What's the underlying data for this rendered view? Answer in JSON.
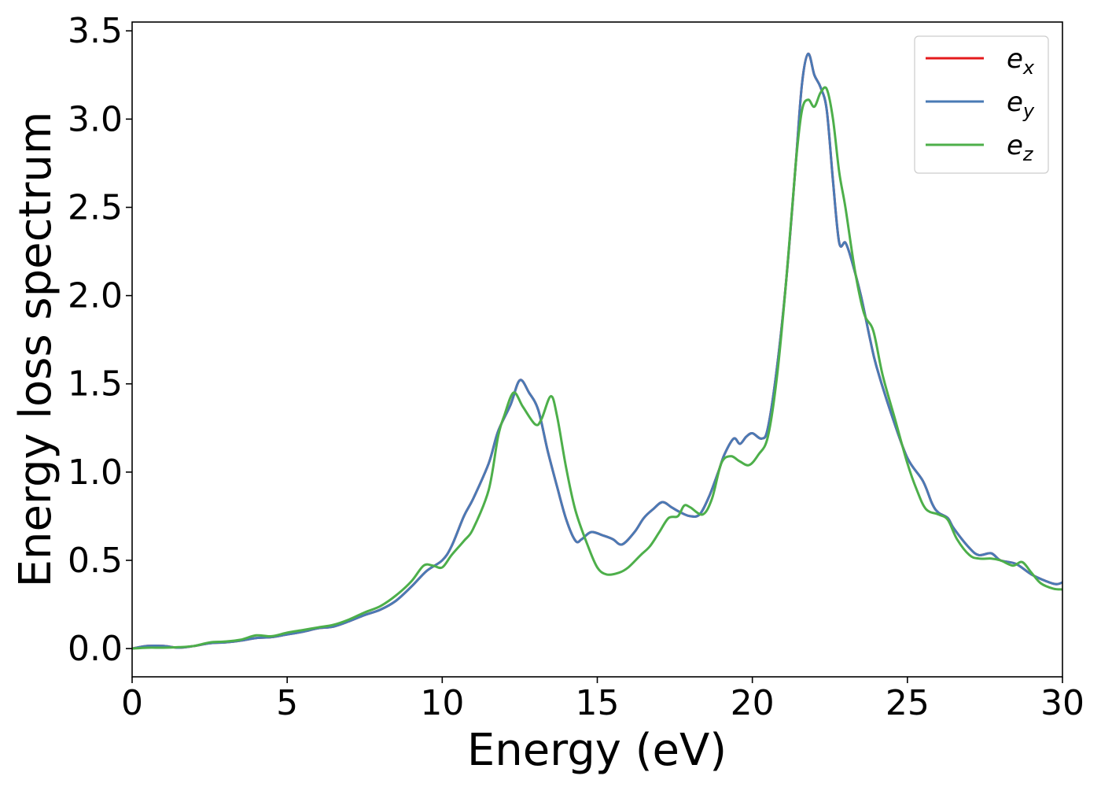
{
  "chart_data": {
    "type": "line",
    "xlabel": "Energy (eV)",
    "ylabel": "Energy loss spectrum",
    "xlim": [
      0,
      30
    ],
    "ylim": [
      -0.16,
      3.55
    ],
    "xticks": [
      0,
      5,
      10,
      15,
      20,
      25,
      30
    ],
    "yticks": [
      0.0,
      0.5,
      1.0,
      1.5,
      2.0,
      2.5,
      3.0,
      3.5
    ],
    "xtick_labels": [
      "0",
      "5",
      "10",
      "15",
      "20",
      "25",
      "30"
    ],
    "ytick_labels": [
      "0.0",
      "0.5",
      "1.0",
      "1.5",
      "2.0",
      "2.5",
      "3.0",
      "3.5"
    ],
    "grid": false,
    "legend_position": "top-right",
    "series": [
      {
        "name": "e_x",
        "legend_base": "e",
        "legend_sub": "x",
        "color": "#e41a1c",
        "points": [
          [
            0,
            0.0
          ],
          [
            0.5,
            0.015
          ],
          [
            1.0,
            0.015
          ],
          [
            1.5,
            0.005
          ],
          [
            2.0,
            0.015
          ],
          [
            2.5,
            0.03
          ],
          [
            3.0,
            0.035
          ],
          [
            3.5,
            0.045
          ],
          [
            4.0,
            0.06
          ],
          [
            4.5,
            0.065
          ],
          [
            5.0,
            0.08
          ],
          [
            5.5,
            0.095
          ],
          [
            6.0,
            0.115
          ],
          [
            6.5,
            0.125
          ],
          [
            7.0,
            0.155
          ],
          [
            7.5,
            0.19
          ],
          [
            8.0,
            0.22
          ],
          [
            8.5,
            0.27
          ],
          [
            9.0,
            0.35
          ],
          [
            9.5,
            0.44
          ],
          [
            10.0,
            0.5
          ],
          [
            10.3,
            0.58
          ],
          [
            10.7,
            0.75
          ],
          [
            11.0,
            0.85
          ],
          [
            11.5,
            1.05
          ],
          [
            11.8,
            1.23
          ],
          [
            12.2,
            1.38
          ],
          [
            12.5,
            1.52
          ],
          [
            12.8,
            1.45
          ],
          [
            13.1,
            1.35
          ],
          [
            13.4,
            1.12
          ],
          [
            13.7,
            0.92
          ],
          [
            14.0,
            0.73
          ],
          [
            14.3,
            0.61
          ],
          [
            14.5,
            0.62
          ],
          [
            14.8,
            0.66
          ],
          [
            15.2,
            0.64
          ],
          [
            15.5,
            0.62
          ],
          [
            15.8,
            0.59
          ],
          [
            16.2,
            0.66
          ],
          [
            16.5,
            0.74
          ],
          [
            16.8,
            0.79
          ],
          [
            17.1,
            0.83
          ],
          [
            17.4,
            0.8
          ],
          [
            17.7,
            0.77
          ],
          [
            18.0,
            0.75
          ],
          [
            18.3,
            0.76
          ],
          [
            18.6,
            0.86
          ],
          [
            18.9,
            1.0
          ],
          [
            19.1,
            1.1
          ],
          [
            19.4,
            1.19
          ],
          [
            19.6,
            1.16
          ],
          [
            19.8,
            1.2
          ],
          [
            20.0,
            1.22
          ],
          [
            20.3,
            1.19
          ],
          [
            20.5,
            1.25
          ],
          [
            20.8,
            1.6
          ],
          [
            21.1,
            2.1
          ],
          [
            21.4,
            2.75
          ],
          [
            21.6,
            3.2
          ],
          [
            21.8,
            3.37
          ],
          [
            22.0,
            3.25
          ],
          [
            22.2,
            3.18
          ],
          [
            22.4,
            3.05
          ],
          [
            22.6,
            2.65
          ],
          [
            22.8,
            2.3
          ],
          [
            23.0,
            2.3
          ],
          [
            23.2,
            2.2
          ],
          [
            23.5,
            2.0
          ],
          [
            23.8,
            1.75
          ],
          [
            24.0,
            1.6
          ],
          [
            24.5,
            1.32
          ],
          [
            25.0,
            1.08
          ],
          [
            25.5,
            0.95
          ],
          [
            25.8,
            0.82
          ],
          [
            26.0,
            0.77
          ],
          [
            26.3,
            0.74
          ],
          [
            26.5,
            0.68
          ],
          [
            27.0,
            0.57
          ],
          [
            27.3,
            0.53
          ],
          [
            27.7,
            0.54
          ],
          [
            28.0,
            0.5
          ],
          [
            28.5,
            0.48
          ],
          [
            29.0,
            0.42
          ],
          [
            29.5,
            0.38
          ],
          [
            29.8,
            0.365
          ],
          [
            30.0,
            0.375
          ]
        ]
      },
      {
        "name": "e_y",
        "legend_base": "e",
        "legend_sub": "y",
        "color": "#4a7ab5",
        "points": [
          [
            0,
            0.0
          ],
          [
            0.5,
            0.015
          ],
          [
            1.0,
            0.015
          ],
          [
            1.5,
            0.005
          ],
          [
            2.0,
            0.015
          ],
          [
            2.5,
            0.03
          ],
          [
            3.0,
            0.035
          ],
          [
            3.5,
            0.045
          ],
          [
            4.0,
            0.06
          ],
          [
            4.5,
            0.065
          ],
          [
            5.0,
            0.08
          ],
          [
            5.5,
            0.095
          ],
          [
            6.0,
            0.115
          ],
          [
            6.5,
            0.125
          ],
          [
            7.0,
            0.155
          ],
          [
            7.5,
            0.19
          ],
          [
            8.0,
            0.22
          ],
          [
            8.5,
            0.27
          ],
          [
            9.0,
            0.35
          ],
          [
            9.5,
            0.44
          ],
          [
            10.0,
            0.5
          ],
          [
            10.3,
            0.58
          ],
          [
            10.7,
            0.75
          ],
          [
            11.0,
            0.85
          ],
          [
            11.5,
            1.05
          ],
          [
            11.8,
            1.23
          ],
          [
            12.2,
            1.38
          ],
          [
            12.5,
            1.52
          ],
          [
            12.8,
            1.45
          ],
          [
            13.1,
            1.35
          ],
          [
            13.4,
            1.12
          ],
          [
            13.7,
            0.92
          ],
          [
            14.0,
            0.73
          ],
          [
            14.3,
            0.61
          ],
          [
            14.5,
            0.62
          ],
          [
            14.8,
            0.66
          ],
          [
            15.2,
            0.64
          ],
          [
            15.5,
            0.62
          ],
          [
            15.8,
            0.59
          ],
          [
            16.2,
            0.66
          ],
          [
            16.5,
            0.74
          ],
          [
            16.8,
            0.79
          ],
          [
            17.1,
            0.83
          ],
          [
            17.4,
            0.8
          ],
          [
            17.7,
            0.77
          ],
          [
            18.0,
            0.75
          ],
          [
            18.3,
            0.76
          ],
          [
            18.6,
            0.86
          ],
          [
            18.9,
            1.0
          ],
          [
            19.1,
            1.1
          ],
          [
            19.4,
            1.19
          ],
          [
            19.6,
            1.16
          ],
          [
            19.8,
            1.2
          ],
          [
            20.0,
            1.22
          ],
          [
            20.3,
            1.19
          ],
          [
            20.5,
            1.25
          ],
          [
            20.8,
            1.6
          ],
          [
            21.1,
            2.1
          ],
          [
            21.4,
            2.75
          ],
          [
            21.6,
            3.2
          ],
          [
            21.8,
            3.37
          ],
          [
            22.0,
            3.25
          ],
          [
            22.2,
            3.18
          ],
          [
            22.4,
            3.05
          ],
          [
            22.6,
            2.65
          ],
          [
            22.8,
            2.3
          ],
          [
            23.0,
            2.3
          ],
          [
            23.2,
            2.2
          ],
          [
            23.5,
            2.0
          ],
          [
            23.8,
            1.75
          ],
          [
            24.0,
            1.6
          ],
          [
            24.5,
            1.32
          ],
          [
            25.0,
            1.08
          ],
          [
            25.5,
            0.95
          ],
          [
            25.8,
            0.82
          ],
          [
            26.0,
            0.77
          ],
          [
            26.3,
            0.74
          ],
          [
            26.5,
            0.68
          ],
          [
            27.0,
            0.57
          ],
          [
            27.3,
            0.53
          ],
          [
            27.7,
            0.54
          ],
          [
            28.0,
            0.5
          ],
          [
            28.5,
            0.48
          ],
          [
            29.0,
            0.42
          ],
          [
            29.5,
            0.38
          ],
          [
            29.8,
            0.365
          ],
          [
            30.0,
            0.375
          ]
        ]
      },
      {
        "name": "e_z",
        "legend_base": "e",
        "legend_sub": "z",
        "color": "#4daf4a",
        "points": [
          [
            0,
            0.0
          ],
          [
            0.5,
            0.005
          ],
          [
            1.0,
            0.005
          ],
          [
            1.5,
            0.008
          ],
          [
            2.0,
            0.015
          ],
          [
            2.5,
            0.035
          ],
          [
            3.0,
            0.04
          ],
          [
            3.5,
            0.05
          ],
          [
            4.0,
            0.075
          ],
          [
            4.5,
            0.07
          ],
          [
            5.0,
            0.09
          ],
          [
            5.5,
            0.105
          ],
          [
            6.0,
            0.12
          ],
          [
            6.5,
            0.135
          ],
          [
            7.0,
            0.165
          ],
          [
            7.5,
            0.205
          ],
          [
            8.0,
            0.24
          ],
          [
            8.5,
            0.3
          ],
          [
            9.0,
            0.38
          ],
          [
            9.4,
            0.47
          ],
          [
            9.7,
            0.47
          ],
          [
            10.0,
            0.46
          ],
          [
            10.3,
            0.53
          ],
          [
            10.7,
            0.61
          ],
          [
            11.0,
            0.68
          ],
          [
            11.5,
            0.9
          ],
          [
            11.8,
            1.2
          ],
          [
            12.0,
            1.32
          ],
          [
            12.3,
            1.45
          ],
          [
            12.6,
            1.37
          ],
          [
            13.0,
            1.27
          ],
          [
            13.2,
            1.3
          ],
          [
            13.5,
            1.43
          ],
          [
            13.7,
            1.32
          ],
          [
            14.0,
            1.02
          ],
          [
            14.3,
            0.78
          ],
          [
            14.7,
            0.58
          ],
          [
            15.0,
            0.46
          ],
          [
            15.3,
            0.42
          ],
          [
            15.7,
            0.43
          ],
          [
            16.0,
            0.46
          ],
          [
            16.4,
            0.53
          ],
          [
            16.7,
            0.58
          ],
          [
            17.0,
            0.66
          ],
          [
            17.3,
            0.74
          ],
          [
            17.6,
            0.75
          ],
          [
            17.8,
            0.81
          ],
          [
            18.0,
            0.8
          ],
          [
            18.4,
            0.76
          ],
          [
            18.7,
            0.85
          ],
          [
            19.0,
            1.05
          ],
          [
            19.3,
            1.09
          ],
          [
            19.6,
            1.06
          ],
          [
            19.9,
            1.04
          ],
          [
            20.2,
            1.1
          ],
          [
            20.5,
            1.2
          ],
          [
            20.8,
            1.55
          ],
          [
            21.1,
            2.1
          ],
          [
            21.4,
            2.75
          ],
          [
            21.6,
            3.05
          ],
          [
            21.8,
            3.11
          ],
          [
            22.0,
            3.07
          ],
          [
            22.2,
            3.15
          ],
          [
            22.4,
            3.17
          ],
          [
            22.6,
            3.0
          ],
          [
            22.8,
            2.7
          ],
          [
            23.0,
            2.5
          ],
          [
            23.3,
            2.15
          ],
          [
            23.6,
            1.9
          ],
          [
            23.9,
            1.8
          ],
          [
            24.2,
            1.55
          ],
          [
            24.6,
            1.3
          ],
          [
            25.0,
            1.05
          ],
          [
            25.3,
            0.9
          ],
          [
            25.6,
            0.79
          ],
          [
            26.0,
            0.76
          ],
          [
            26.3,
            0.73
          ],
          [
            26.6,
            0.62
          ],
          [
            27.0,
            0.53
          ],
          [
            27.3,
            0.51
          ],
          [
            27.7,
            0.51
          ],
          [
            28.0,
            0.5
          ],
          [
            28.4,
            0.47
          ],
          [
            28.7,
            0.49
          ],
          [
            29.0,
            0.43
          ],
          [
            29.3,
            0.37
          ],
          [
            29.7,
            0.34
          ],
          [
            30.0,
            0.335
          ]
        ]
      }
    ]
  }
}
